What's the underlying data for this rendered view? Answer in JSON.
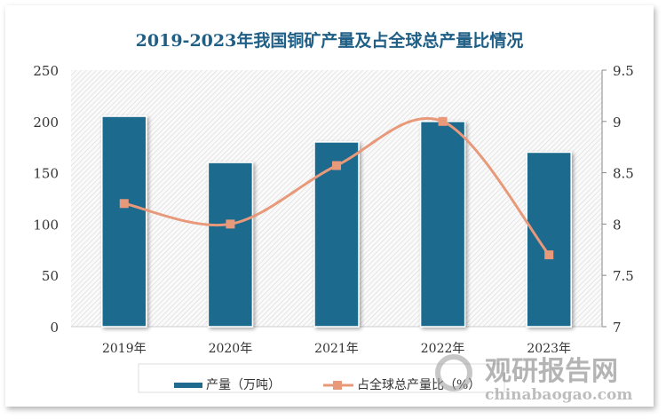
{
  "chart_data": {
    "type": "bar+line",
    "title": "2019-2023年我国铜矿产量及占全球总产量比情况",
    "categories": [
      "2019年",
      "2020年",
      "2021年",
      "2022年",
      "2023年"
    ],
    "series": [
      {
        "name": "产量（万吨）",
        "type": "bar",
        "axis": "left",
        "values": [
          205,
          160,
          180,
          200,
          170
        ],
        "color": "#1f6b8e"
      },
      {
        "name": "占全球总产量比（%）",
        "type": "line",
        "axis": "right",
        "values": [
          8.2,
          8.0,
          8.57,
          9.0,
          7.7
        ],
        "color": "#e8997a"
      }
    ],
    "y_left": {
      "ylim": [
        0,
        250
      ],
      "ticks": [
        "0",
        "50",
        "100",
        "150",
        "200",
        "250"
      ]
    },
    "y_right": {
      "ylim": [
        7,
        9.5
      ],
      "ticks": [
        "7",
        "7.5",
        "8",
        "8.5",
        "9",
        "9.5"
      ]
    },
    "legend_position": "bottom",
    "grid": false
  },
  "watermark": {
    "text": "观研报告网",
    "url_text": "chinabaogao.com"
  }
}
